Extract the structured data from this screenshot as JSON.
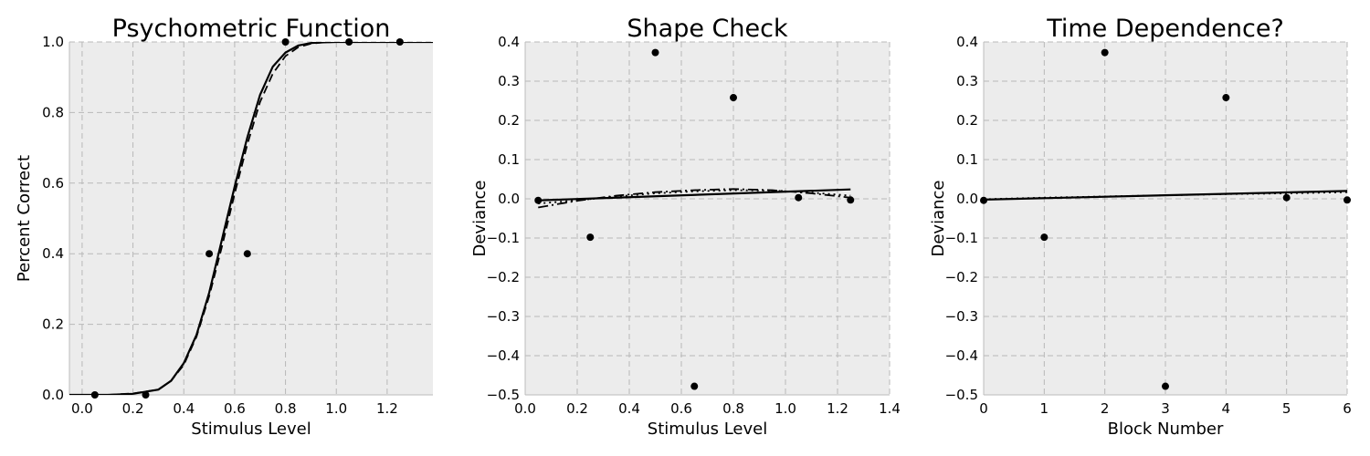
{
  "chart_data": [
    {
      "type": "scatter",
      "title": "Psychometric Function",
      "xlabel": "Stimulus Level",
      "ylabel": "Percent Correct",
      "xlim": [
        -0.05,
        1.38
      ],
      "ylim": [
        0.0,
        1.0
      ],
      "xticks": [
        "0.0",
        "0.2",
        "0.4",
        "0.6",
        "0.8",
        "1.0",
        "1.2"
      ],
      "xtick_values": [
        0.0,
        0.2,
        0.4,
        0.6,
        0.8,
        1.0,
        1.2
      ],
      "yticks": [
        "0.0",
        "0.2",
        "0.4",
        "0.6",
        "0.8",
        "1.0"
      ],
      "ytick_values": [
        0.0,
        0.2,
        0.4,
        0.6,
        0.8,
        1.0
      ],
      "grid": true,
      "points": {
        "x": [
          0.05,
          0.25,
          0.5,
          0.65,
          0.8,
          1.05,
          1.25
        ],
        "y": [
          0.0,
          0.0,
          0.4,
          0.4,
          1.0,
          1.0,
          1.0
        ]
      },
      "fits": [
        {
          "style": "dashed",
          "x": [
            -0.05,
            0.1,
            0.2,
            0.3,
            0.35,
            0.4,
            0.45,
            0.5,
            0.55,
            0.6,
            0.65,
            0.7,
            0.75,
            0.8,
            0.85,
            0.9,
            0.95,
            1.0,
            1.1,
            1.2,
            1.38
          ],
          "y": [
            0.0,
            0.0,
            0.004,
            0.015,
            0.04,
            0.085,
            0.165,
            0.28,
            0.42,
            0.57,
            0.71,
            0.83,
            0.91,
            0.96,
            0.985,
            0.995,
            0.999,
            1.0,
            1.0,
            1.0,
            1.0
          ]
        },
        {
          "style": "solid",
          "x": [
            -0.05,
            0.1,
            0.2,
            0.3,
            0.35,
            0.4,
            0.45,
            0.5,
            0.55,
            0.6,
            0.65,
            0.7,
            0.75,
            0.8,
            0.85,
            0.9,
            0.95,
            1.0,
            1.1,
            1.2,
            1.38
          ],
          "y": [
            0.0,
            0.0,
            0.003,
            0.015,
            0.04,
            0.09,
            0.17,
            0.29,
            0.44,
            0.59,
            0.73,
            0.85,
            0.93,
            0.97,
            0.99,
            0.997,
            0.999,
            1.0,
            1.0,
            1.0,
            1.0
          ]
        }
      ]
    },
    {
      "type": "scatter",
      "title": "Shape Check",
      "xlabel": "Stimulus Level",
      "ylabel": "Deviance",
      "xlim": [
        0.0,
        1.4
      ],
      "ylim": [
        -0.5,
        0.4
      ],
      "xticks": [
        "0.0",
        "0.2",
        "0.4",
        "0.6",
        "0.8",
        "1.0",
        "1.2",
        "1.4"
      ],
      "xtick_values": [
        0.0,
        0.2,
        0.4,
        0.6,
        0.8,
        1.0,
        1.2,
        1.4
      ],
      "yticks": [
        "−0.5",
        "−0.4",
        "−0.3",
        "−0.2",
        "−0.1",
        "0.0",
        "0.1",
        "0.2",
        "0.3",
        "0.4"
      ],
      "ytick_values": [
        -0.5,
        -0.4,
        -0.3,
        -0.2,
        -0.1,
        0.0,
        0.1,
        0.2,
        0.3,
        0.4
      ],
      "grid": true,
      "points": {
        "x": [
          0.05,
          0.25,
          0.5,
          0.65,
          0.8,
          1.05,
          1.25
        ],
        "y": [
          -0.004,
          -0.098,
          0.373,
          -0.478,
          0.258,
          0.003,
          -0.003
        ]
      },
      "fits": [
        {
          "style": "dashdot",
          "x": [
            0.05,
            0.2,
            0.35,
            0.5,
            0.65,
            0.8,
            0.95,
            1.1,
            1.25
          ],
          "y": [
            -0.022,
            -0.005,
            0.008,
            0.017,
            0.022,
            0.025,
            0.022,
            0.014,
            0.003
          ]
        },
        {
          "style": "dotted",
          "x": [
            0.05,
            0.2,
            0.35,
            0.5,
            0.65,
            0.8,
            0.95,
            1.1,
            1.25
          ],
          "y": [
            -0.012,
            -0.004,
            0.006,
            0.014,
            0.019,
            0.022,
            0.021,
            0.016,
            0.008
          ]
        },
        {
          "style": "solid",
          "x": [
            0.05,
            1.25
          ],
          "y": [
            -0.004,
            0.024
          ]
        }
      ]
    },
    {
      "type": "scatter",
      "title": "Time Dependence?",
      "xlabel": "Block Number",
      "ylabel": "Deviance",
      "xlim": [
        0,
        6
      ],
      "ylim": [
        -0.5,
        0.4
      ],
      "xticks": [
        "0",
        "1",
        "2",
        "3",
        "4",
        "5",
        "6"
      ],
      "xtick_values": [
        0,
        1,
        2,
        3,
        4,
        5,
        6
      ],
      "yticks": [
        "−0.5",
        "−0.4",
        "−0.3",
        "−0.2",
        "−0.1",
        "0.0",
        "0.1",
        "0.2",
        "0.3",
        "0.4"
      ],
      "ytick_values": [
        -0.5,
        -0.4,
        -0.3,
        -0.2,
        -0.1,
        0.0,
        0.1,
        0.2,
        0.3,
        0.4
      ],
      "grid": true,
      "points": {
        "x": [
          0,
          1,
          2,
          3,
          4,
          5,
          6
        ],
        "y": [
          -0.004,
          -0.098,
          0.373,
          -0.478,
          0.258,
          0.003,
          -0.003
        ]
      },
      "fits": [
        {
          "style": "dotted",
          "x": [
            0,
            1,
            2,
            3,
            4,
            5,
            6
          ],
          "y": [
            -0.001,
            0.003,
            0.006,
            0.009,
            0.012,
            0.014,
            0.017
          ]
        },
        {
          "style": "solid",
          "x": [
            0,
            6
          ],
          "y": [
            -0.002,
            0.02
          ]
        }
      ]
    }
  ]
}
